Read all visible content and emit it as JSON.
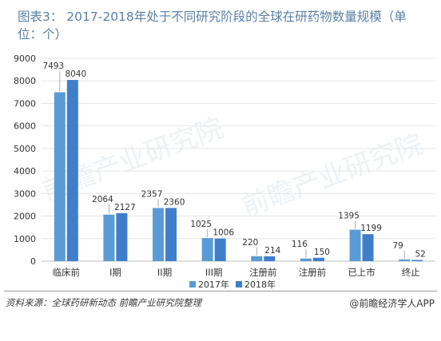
{
  "title": "图表3： 2017-2018年处于不同研究阶段的全球在研药物数量规模（单位：个）",
  "source": "资料来源：全球药研新动态 前瞻产业研究院整理",
  "brand": "@前瞻经济学人APP",
  "watermark": "前瞻产业研究院",
  "colors": {
    "s2017": "#5b9bd5",
    "s2018": "#3f7ecb",
    "axis": "#bfbfbf",
    "grid": "#e6e6e6",
    "text": "#333333"
  },
  "chart_data": {
    "type": "bar",
    "categories": [
      "临床前",
      "I期",
      "II期",
      "III期",
      "注册前",
      "注册前",
      "已上市",
      "终止"
    ],
    "series": [
      {
        "name": "2017年",
        "values": [
          7493,
          2064,
          2357,
          1025,
          220,
          116,
          1395,
          79
        ]
      },
      {
        "name": "2018年",
        "values": [
          8040,
          2127,
          2360,
          1006,
          214,
          150,
          1199,
          52
        ]
      }
    ],
    "ylim": [
      0,
      9000
    ],
    "yticks": [
      0,
      1000,
      2000,
      3000,
      4000,
      5000,
      6000,
      7000,
      8000,
      9000
    ],
    "grid": true,
    "legend": "bottom"
  }
}
